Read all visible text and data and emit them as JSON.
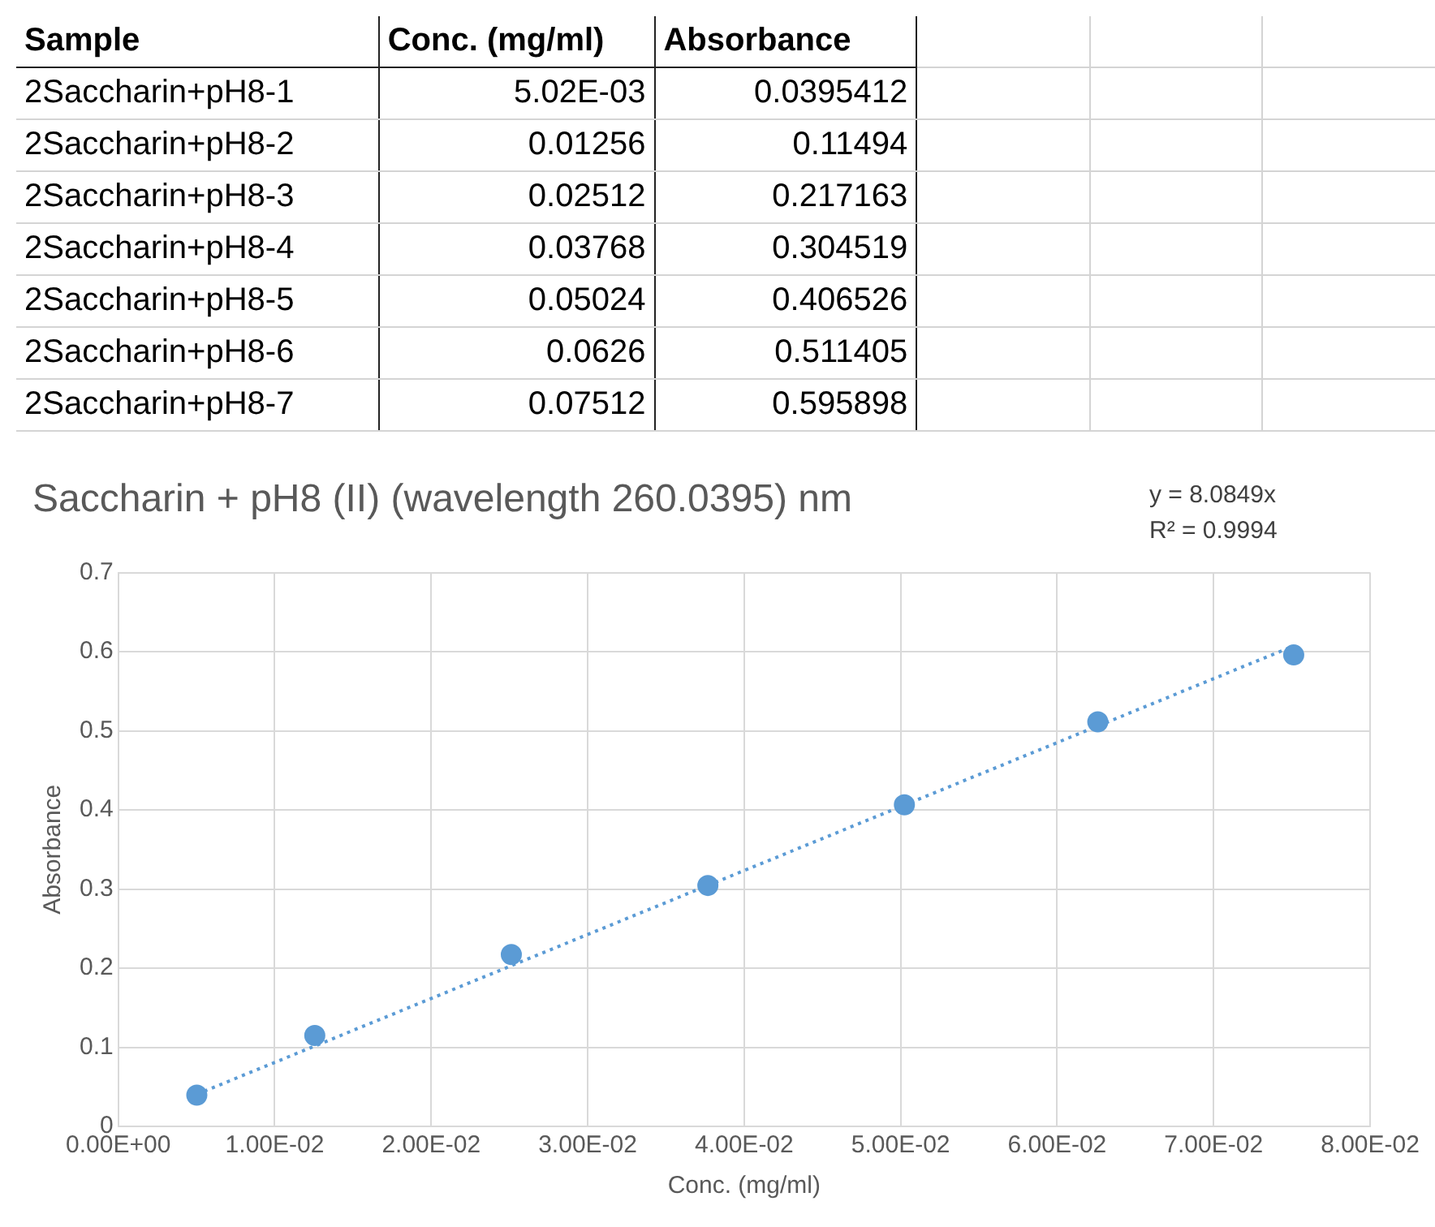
{
  "chart_data": {
    "type": "scatter",
    "title": "Saccharin + pH8 (II) (wavelength 260.0395) nm",
    "xlabel": "Conc. (mg/ml)",
    "ylabel": "Absorbance",
    "annotations": [
      "y = 8.0849x",
      "R² = 0.9994",
      "Sample",
      "2Saccharin+pH8-1",
      "2Saccharin+pH8-2",
      "2Saccharin+pH8-3",
      "2Saccharin+pH8-4",
      "2Saccharin+pH8-5",
      "2Saccharin+pH8-6",
      "2Saccharin+pH8-7",
      "5.02E-03",
      "0.01256",
      "0.02512",
      "0.03768",
      "0.05024",
      "0.0626",
      "0.07512",
      "0.0395412",
      "0.11494",
      "0.217163",
      "0.304519",
      "0.406526",
      "0.511405",
      "0.595898"
    ],
    "series": [
      {
        "color": "#5b9bd5",
        "x": [
          0.00502,
          0.01256,
          0.02512,
          0.03768,
          0.05024,
          0.0626,
          0.07512
        ],
        "values": [
          0.0395412,
          0.11494,
          0.217163,
          0.304519,
          0.406526,
          0.511405,
          0.595898
        ]
      },
      {
        "type": "line",
        "color": "#5b9bd5",
        "line_style": "dotted",
        "marker": "none",
        "x": [
          0.00502,
          0.07512
        ],
        "values": [
          0.0406,
          0.6073
        ]
      }
    ],
    "marker": "circle",
    "grid": true,
    "legend": false,
    "xlim": [
      0,
      0.08
    ],
    "xticks": [
      {
        "value": 0,
        "label": "0.00E+00"
      },
      {
        "value": 0.01,
        "label": "1.00E-02"
      },
      {
        "value": 0.02,
        "label": "2.00E-02"
      },
      {
        "value": 0.03,
        "label": "3.00E-02"
      },
      {
        "value": 0.04,
        "label": "4.00E-02"
      },
      {
        "value": 0.05,
        "label": "5.00E-02"
      },
      {
        "value": 0.06,
        "label": "6.00E-02"
      },
      {
        "value": 0.07,
        "label": "7.00E-02"
      },
      {
        "value": 0.08,
        "label": "8.00E-02"
      }
    ],
    "ylim": [
      0,
      0.7
    ],
    "yticks": [
      0,
      0.1,
      0.2,
      0.3,
      0.4,
      0.5,
      0.6,
      0.7
    ]
  }
}
